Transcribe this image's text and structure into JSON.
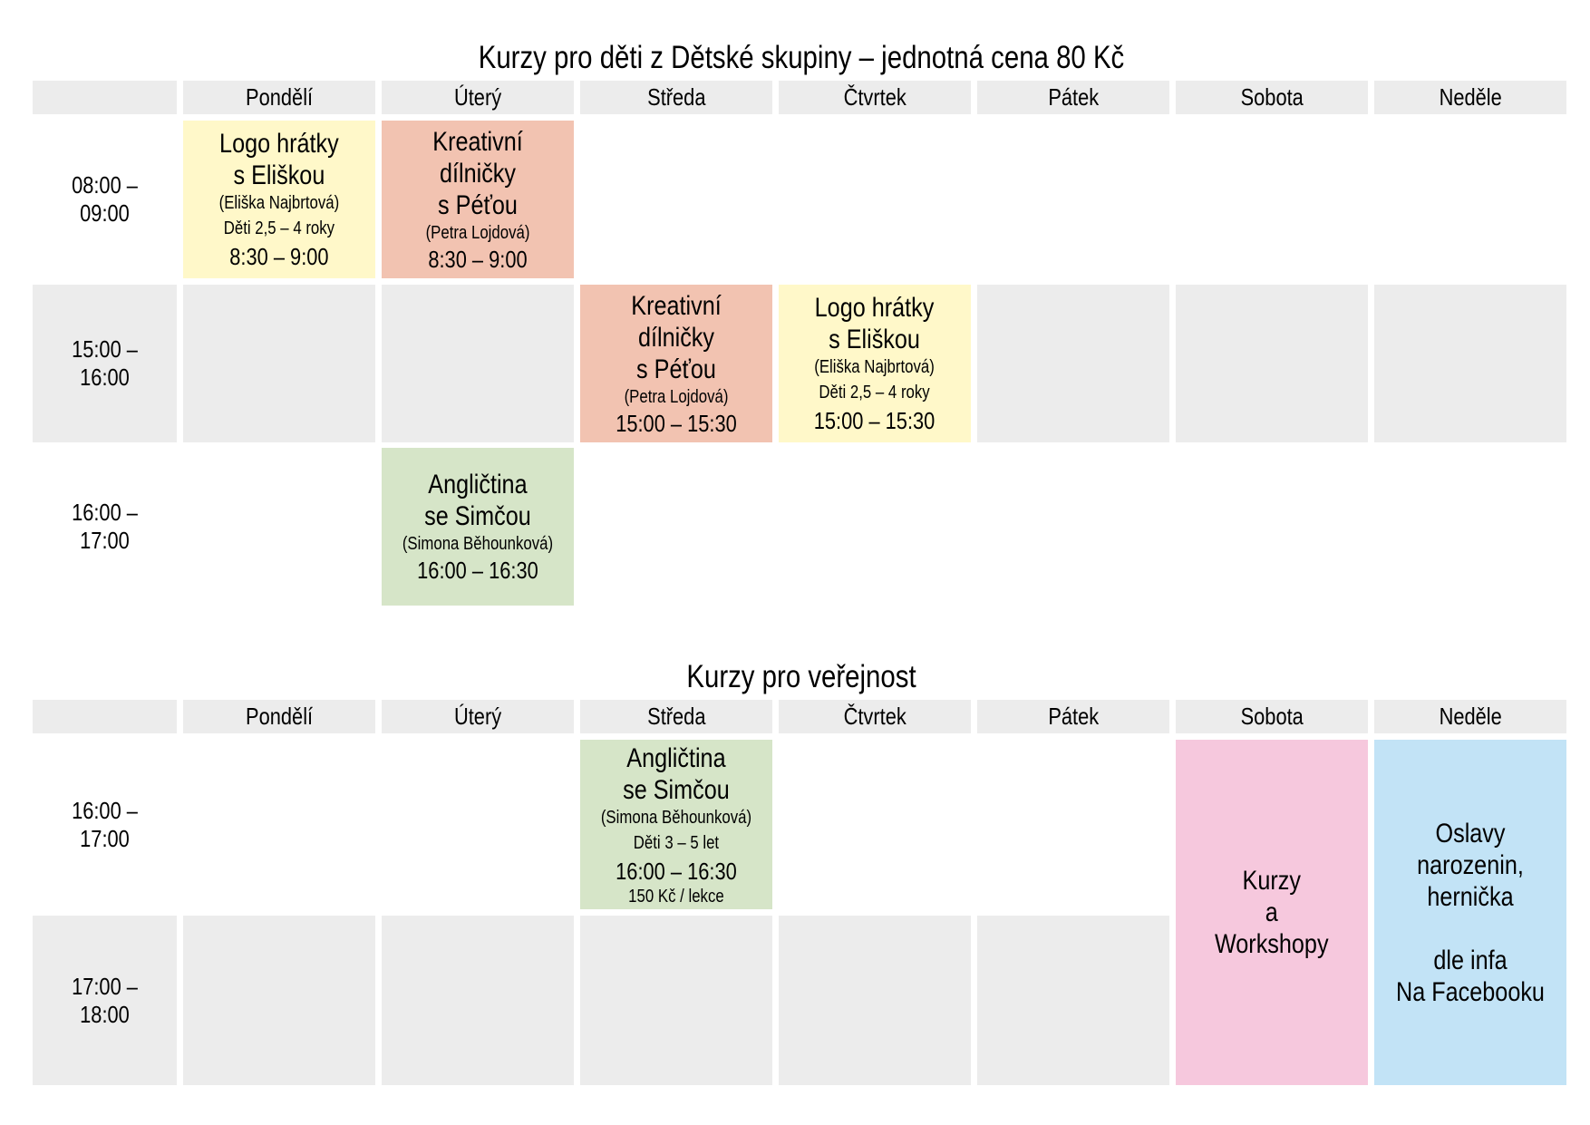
{
  "section1": {
    "title": "Kurzy pro děti z Dětské skupiny – jednotná cena 80 Kč",
    "days": [
      "Pondělí",
      "Úterý",
      "Středa",
      "Čtvrtek",
      "Pátek",
      "Sobota",
      "Neděle"
    ],
    "times": [
      "08:00 – 09:00",
      "15:00 – 16:00",
      "16:00 – 17:00"
    ],
    "courses": {
      "logo_mon": {
        "name_1": "Logo hrátky",
        "name_2": "s Eliškou",
        "teacher": "(Eliška Najbrtová)",
        "age": "Děti 2,5 – 4 roky",
        "time": "8:30 – 9:00"
      },
      "kreativ_tue": {
        "name_1": "Kreativní dílničky",
        "name_2": "s Péťou",
        "teacher": "(Petra Lojdová)",
        "time": "8:30 – 9:00"
      },
      "kreativ_wed": {
        "name_1": "Kreativní dílničky",
        "name_2": "s Péťou",
        "teacher": "(Petra Lojdová)",
        "time": "15:00 – 15:30"
      },
      "logo_thu": {
        "name_1": "Logo hrátky",
        "name_2": "s Eliškou",
        "teacher": "(Eliška Najbrtová)",
        "age": "Děti 2,5 – 4 roky",
        "time": "15:00 – 15:30"
      },
      "angl_tue": {
        "name_1": "Angličtina",
        "name_2": "se Simčou",
        "teacher": "(Simona Běhounková)",
        "time": "16:00 – 16:30"
      }
    }
  },
  "section2": {
    "title": "Kurzy pro veřejnost",
    "days": [
      "Pondělí",
      "Úterý",
      "Středa",
      "Čtvrtek",
      "Pátek",
      "Sobota",
      "Neděle"
    ],
    "times": [
      "16:00 – 17:00",
      "17:00 – 18:00"
    ],
    "courses": {
      "angl_wed": {
        "name_1": "Angličtina",
        "name_2": "se Simčou",
        "teacher": "(Simona Běhounková)",
        "age": "Děti 3 – 5 let",
        "time": "16:00 – 16:30",
        "price": "150 Kč / lekce"
      }
    },
    "saturday_text": "Kurzy\na\nWorkshopy",
    "sunday_text": "Oslavy narozenin,\nhernička\n\ndle infa\nNa Facebooku"
  },
  "colors": {
    "grey": "#ececec",
    "yellow": "#fff8c9",
    "salmon": "#f2c3b1",
    "green": "#d6e5c8",
    "pink": "#f6c8dd",
    "blue": "#c2e3f6"
  }
}
